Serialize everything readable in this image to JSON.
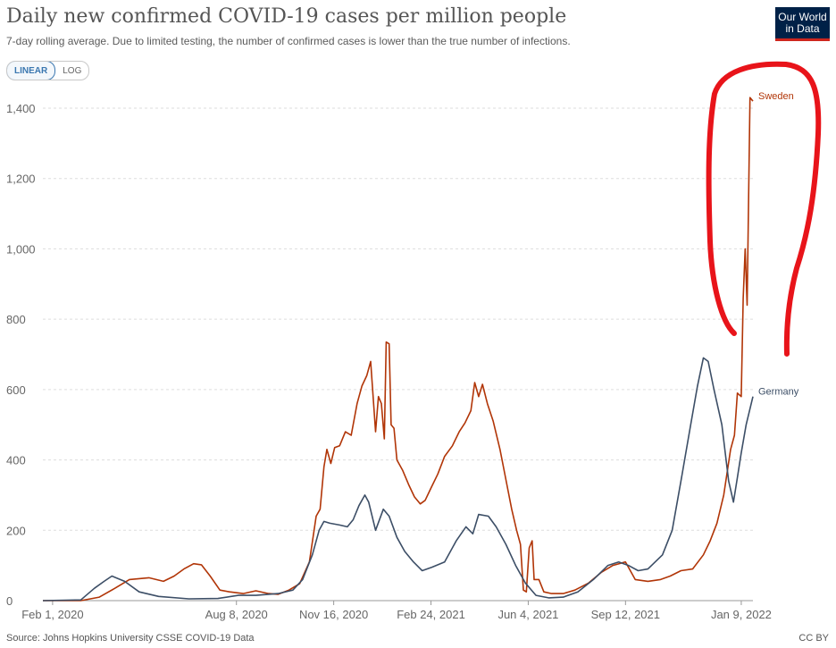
{
  "header": {
    "title": "Daily new confirmed COVID-19 cases per million people",
    "subtitle": "7-day rolling average. Due to limited testing, the number of confirmed cases is lower than the true number of infections.",
    "logo_line1": "Our World",
    "logo_line2": "in Data"
  },
  "scale_toggle": {
    "linear_label": "LINEAR",
    "log_label": "LOG",
    "selected": "LINEAR"
  },
  "footer": {
    "source": "Source: Johns Hopkins University CSSE COVID-19 Data",
    "license": "CC BY"
  },
  "colors": {
    "Sweden": "#b13507",
    "Germany": "#3c4e66",
    "annotation": "#e8141a",
    "grid": "#dddddd"
  },
  "chart_data": {
    "type": "line",
    "title": "Daily new confirmed COVID-19 cases per million people",
    "subtitle": "7-day rolling average. Due to limited testing, the number of confirmed cases is lower than the true number of infections.",
    "ylim": [
      0,
      1450
    ],
    "xlim": [
      "2020-01-22",
      "2022-01-21"
    ],
    "y_ticks": [
      0,
      200,
      400,
      600,
      800,
      1000,
      1200,
      1400
    ],
    "y_tick_labels": [
      "0",
      "200",
      "400",
      "600",
      "800",
      "1,000",
      "1,200",
      "1,400"
    ],
    "x_ticks": [
      {
        "date": "2020-02-01",
        "label": "Feb 1, 2020"
      },
      {
        "date": "2020-08-08",
        "label": "Aug 8, 2020"
      },
      {
        "date": "2020-11-16",
        "label": "Nov 16, 2020"
      },
      {
        "date": "2021-02-24",
        "label": "Feb 24, 2021"
      },
      {
        "date": "2021-06-04",
        "label": "Jun 4, 2021"
      },
      {
        "date": "2021-09-12",
        "label": "Sep 12, 2021"
      },
      {
        "date": "2022-01-09",
        "label": "Jan 9, 2022"
      }
    ],
    "grid": true,
    "legend": "labels at line ends",
    "series": [
      {
        "name": "Sweden",
        "color": "#b13507",
        "points": [
          [
            "2020-01-22",
            0
          ],
          [
            "2020-03-01",
            0
          ],
          [
            "2020-03-20",
            10
          ],
          [
            "2020-04-05",
            35
          ],
          [
            "2020-04-20",
            60
          ],
          [
            "2020-05-10",
            65
          ],
          [
            "2020-05-25",
            55
          ],
          [
            "2020-06-05",
            70
          ],
          [
            "2020-06-15",
            90
          ],
          [
            "2020-06-25",
            105
          ],
          [
            "2020-07-03",
            102
          ],
          [
            "2020-07-12",
            70
          ],
          [
            "2020-07-22",
            30
          ],
          [
            "2020-08-01",
            25
          ],
          [
            "2020-08-15",
            20
          ],
          [
            "2020-08-28",
            28
          ],
          [
            "2020-09-10",
            20
          ],
          [
            "2020-09-20",
            18
          ],
          [
            "2020-10-01",
            30
          ],
          [
            "2020-10-12",
            48
          ],
          [
            "2020-10-22",
            110
          ],
          [
            "2020-10-29",
            240
          ],
          [
            "2020-11-02",
            260
          ],
          [
            "2020-11-06",
            380
          ],
          [
            "2020-11-09",
            430
          ],
          [
            "2020-11-13",
            390
          ],
          [
            "2020-11-17",
            435
          ],
          [
            "2020-11-22",
            440
          ],
          [
            "2020-11-28",
            480
          ],
          [
            "2020-12-04",
            470
          ],
          [
            "2020-12-10",
            560
          ],
          [
            "2020-12-15",
            610
          ],
          [
            "2020-12-20",
            640
          ],
          [
            "2020-12-24",
            680
          ],
          [
            "2020-12-27",
            560
          ],
          [
            "2020-12-29",
            480
          ],
          [
            "2021-01-01",
            580
          ],
          [
            "2021-01-04",
            560
          ],
          [
            "2021-01-07",
            460
          ],
          [
            "2021-01-09",
            735
          ],
          [
            "2021-01-12",
            730
          ],
          [
            "2021-01-14",
            500
          ],
          [
            "2021-01-17",
            490
          ],
          [
            "2021-01-20",
            400
          ],
          [
            "2021-01-26",
            370
          ],
          [
            "2021-02-01",
            330
          ],
          [
            "2021-02-07",
            295
          ],
          [
            "2021-02-13",
            275
          ],
          [
            "2021-02-18",
            285
          ],
          [
            "2021-02-24",
            320
          ],
          [
            "2021-03-03",
            360
          ],
          [
            "2021-03-10",
            410
          ],
          [
            "2021-03-18",
            440
          ],
          [
            "2021-03-25",
            480
          ],
          [
            "2021-03-31",
            505
          ],
          [
            "2021-04-06",
            540
          ],
          [
            "2021-04-10",
            620
          ],
          [
            "2021-04-14",
            580
          ],
          [
            "2021-04-18",
            615
          ],
          [
            "2021-04-23",
            560
          ],
          [
            "2021-04-29",
            510
          ],
          [
            "2021-05-06",
            430
          ],
          [
            "2021-05-13",
            330
          ],
          [
            "2021-05-18",
            260
          ],
          [
            "2021-05-23",
            200
          ],
          [
            "2021-05-27",
            160
          ],
          [
            "2021-05-30",
            30
          ],
          [
            "2021-06-02",
            25
          ],
          [
            "2021-06-05",
            150
          ],
          [
            "2021-06-08",
            170
          ],
          [
            "2021-06-10",
            60
          ],
          [
            "2021-06-15",
            60
          ],
          [
            "2021-06-20",
            25
          ],
          [
            "2021-06-28",
            20
          ],
          [
            "2021-07-10",
            20
          ],
          [
            "2021-07-22",
            30
          ],
          [
            "2021-08-05",
            50
          ],
          [
            "2021-08-18",
            80
          ],
          [
            "2021-08-30",
            100
          ],
          [
            "2021-09-12",
            110
          ],
          [
            "2021-09-22",
            60
          ],
          [
            "2021-10-05",
            55
          ],
          [
            "2021-10-18",
            60
          ],
          [
            "2021-10-28",
            70
          ],
          [
            "2021-11-08",
            85
          ],
          [
            "2021-11-20",
            90
          ],
          [
            "2021-12-01",
            130
          ],
          [
            "2021-12-08",
            170
          ],
          [
            "2021-12-15",
            220
          ],
          [
            "2021-12-22",
            300
          ],
          [
            "2021-12-29",
            430
          ],
          [
            "2022-01-02",
            470
          ],
          [
            "2022-01-05",
            590
          ],
          [
            "2022-01-09",
            580
          ],
          [
            "2022-01-11",
            860
          ],
          [
            "2022-01-13",
            1000
          ],
          [
            "2022-01-15",
            840
          ],
          [
            "2022-01-18",
            1430
          ],
          [
            "2022-01-21",
            1420
          ]
        ]
      },
      {
        "name": "Germany",
        "color": "#3c4e66",
        "points": [
          [
            "2020-01-22",
            0
          ],
          [
            "2020-03-01",
            2
          ],
          [
            "2020-03-15",
            35
          ],
          [
            "2020-03-25",
            55
          ],
          [
            "2020-04-02",
            70
          ],
          [
            "2020-04-15",
            55
          ],
          [
            "2020-04-30",
            25
          ],
          [
            "2020-05-20",
            12
          ],
          [
            "2020-06-20",
            5
          ],
          [
            "2020-07-20",
            6
          ],
          [
            "2020-08-10",
            15
          ],
          [
            "2020-08-28",
            15
          ],
          [
            "2020-09-20",
            20
          ],
          [
            "2020-10-05",
            30
          ],
          [
            "2020-10-15",
            60
          ],
          [
            "2020-10-25",
            130
          ],
          [
            "2020-11-01",
            200
          ],
          [
            "2020-11-06",
            225
          ],
          [
            "2020-11-12",
            220
          ],
          [
            "2020-11-22",
            215
          ],
          [
            "2020-11-30",
            210
          ],
          [
            "2020-12-06",
            230
          ],
          [
            "2020-12-12",
            270
          ],
          [
            "2020-12-18",
            300
          ],
          [
            "2020-12-22",
            280
          ],
          [
            "2020-12-29",
            200
          ],
          [
            "2021-01-06",
            260
          ],
          [
            "2021-01-12",
            240
          ],
          [
            "2021-01-20",
            180
          ],
          [
            "2021-01-28",
            140
          ],
          [
            "2021-02-06",
            110
          ],
          [
            "2021-02-15",
            85
          ],
          [
            "2021-02-25",
            95
          ],
          [
            "2021-03-10",
            110
          ],
          [
            "2021-03-22",
            170
          ],
          [
            "2021-04-01",
            210
          ],
          [
            "2021-04-08",
            190
          ],
          [
            "2021-04-14",
            245
          ],
          [
            "2021-04-24",
            240
          ],
          [
            "2021-05-02",
            210
          ],
          [
            "2021-05-12",
            160
          ],
          [
            "2021-05-22",
            100
          ],
          [
            "2021-06-01",
            50
          ],
          [
            "2021-06-12",
            15
          ],
          [
            "2021-06-25",
            8
          ],
          [
            "2021-07-10",
            10
          ],
          [
            "2021-07-25",
            25
          ],
          [
            "2021-08-10",
            60
          ],
          [
            "2021-08-25",
            100
          ],
          [
            "2021-09-05",
            110
          ],
          [
            "2021-09-15",
            100
          ],
          [
            "2021-09-25",
            85
          ],
          [
            "2021-10-05",
            90
          ],
          [
            "2021-10-20",
            130
          ],
          [
            "2021-10-30",
            200
          ],
          [
            "2021-11-08",
            340
          ],
          [
            "2021-11-18",
            500
          ],
          [
            "2021-11-25",
            610
          ],
          [
            "2021-12-01",
            690
          ],
          [
            "2021-12-06",
            680
          ],
          [
            "2021-12-12",
            600
          ],
          [
            "2021-12-20",
            500
          ],
          [
            "2021-12-27",
            340
          ],
          [
            "2022-01-01",
            280
          ],
          [
            "2022-01-05",
            350
          ],
          [
            "2022-01-09",
            420
          ],
          [
            "2022-01-14",
            500
          ],
          [
            "2022-01-21",
            580
          ]
        ]
      }
    ]
  }
}
